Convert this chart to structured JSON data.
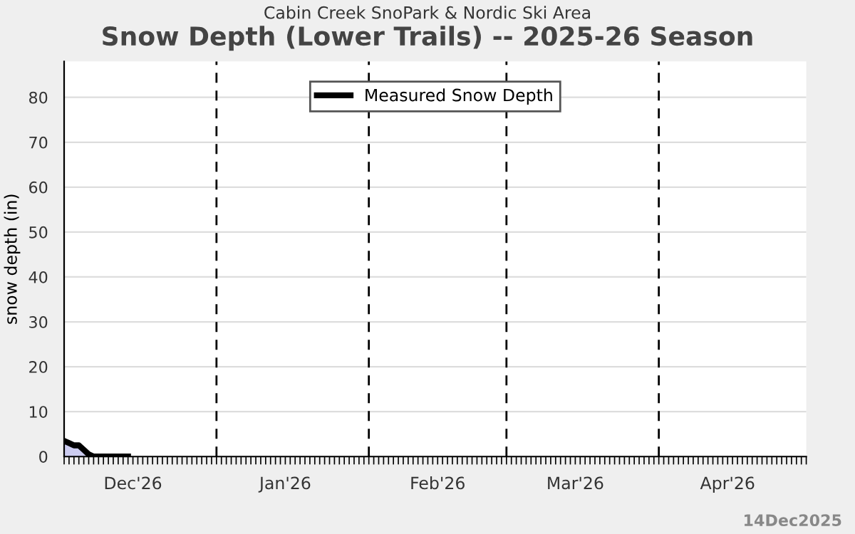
{
  "chart_data": {
    "type": "area",
    "subtitle": "Cabin Creek SnoPark & Nordic Ski Area",
    "title": "Snow Depth (Lower Trails) -- 2025-26 Season",
    "ylabel": "snow depth (in)",
    "x": [
      "2025-12-01",
      "2025-12-02",
      "2025-12-03",
      "2025-12-04",
      "2025-12-05",
      "2025-12-06",
      "2025-12-07",
      "2025-12-08",
      "2025-12-09",
      "2025-12-10",
      "2025-12-11",
      "2025-12-12",
      "2025-12-13",
      "2025-12-14"
    ],
    "series": [
      {
        "name": "Measured Snow Depth",
        "color": "#000000",
        "values": [
          3.5,
          3,
          2.5,
          2.5,
          1.5,
          0.5,
          0,
          0,
          0,
          0,
          0,
          0,
          0,
          0
        ]
      }
    ],
    "xlim": [
      "2025-12-01",
      "2026-05-01"
    ],
    "xticks": [
      {
        "value": "2025-12-15",
        "label": "Dec'26"
      },
      {
        "value": "2026-01-15",
        "label": "Jan'26"
      },
      {
        "value": "2026-02-15",
        "label": "Feb'26"
      },
      {
        "value": "2026-03-15",
        "label": "Mar'26"
      },
      {
        "value": "2026-04-15",
        "label": "Apr'26"
      }
    ],
    "ylim": [
      0,
      88
    ],
    "yticks": [
      0,
      10,
      20,
      30,
      40,
      50,
      60,
      70,
      80
    ],
    "ref_lines": [
      {
        "axis": "x",
        "value": "2026-01-01",
        "line_style": "dashed",
        "color": "#000000"
      },
      {
        "axis": "x",
        "value": "2026-02-01",
        "line_style": "dashed",
        "color": "#000000"
      },
      {
        "axis": "x",
        "value": "2026-03-01",
        "line_style": "dashed",
        "color": "#000000"
      },
      {
        "axis": "x",
        "value": "2026-04-01",
        "line_style": "dashed",
        "color": "#000000"
      }
    ],
    "grid": "y",
    "legend": "top",
    "annotations": [
      "14Dec2025"
    ]
  }
}
